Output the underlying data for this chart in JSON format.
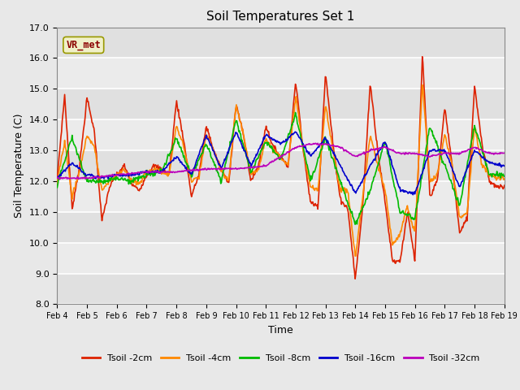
{
  "title": "Soil Temperatures Set 1",
  "xlabel": "Time",
  "ylabel": "Soil Temperature (C)",
  "ylim": [
    8.0,
    17.0
  ],
  "yticks": [
    8.0,
    9.0,
    10.0,
    11.0,
    12.0,
    13.0,
    14.0,
    15.0,
    16.0,
    17.0
  ],
  "x_tick_labels": [
    "Feb 4",
    "Feb 5",
    "Feb 6",
    "Feb 7",
    "Feb 8",
    "Feb 9",
    "Feb 10",
    "Feb 11",
    "Feb 12",
    "Feb 13",
    "Feb 14",
    "Feb 15",
    "Feb 16",
    "Feb 17",
    "Feb 18",
    "Feb 19"
  ],
  "background_color": "#e8e8e8",
  "plot_bg_color": "#e8e8e8",
  "band_color_dark": "#d8d8d8",
  "band_color_light": "#ebebeb",
  "grid_color": "#cccccc",
  "annotation_text": "VR_met",
  "annotation_color": "#8b0000",
  "annotation_bg": "#f0f0c8",
  "series": [
    {
      "label": "Tsoil -2cm",
      "color": "#dd2200",
      "lw": 1.2
    },
    {
      "label": "Tsoil -4cm",
      "color": "#ff8800",
      "lw": 1.2
    },
    {
      "label": "Tsoil -8cm",
      "color": "#00bb00",
      "lw": 1.2
    },
    {
      "label": "Tsoil -16cm",
      "color": "#0000cc",
      "lw": 1.2
    },
    {
      "label": "Tsoil -32cm",
      "color": "#bb00bb",
      "lw": 1.2
    }
  ]
}
